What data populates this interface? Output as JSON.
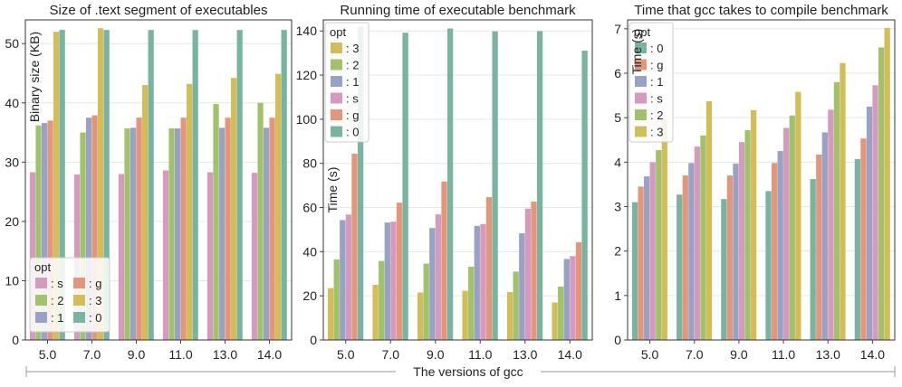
{
  "figure": {
    "shared_xlabel": "The versions of gcc"
  },
  "chart_data": [
    {
      "type": "bar",
      "title": "Size of .text segment of executables",
      "ylabel": "Binary size (KB)",
      "xlabel": "",
      "ylim": [
        0,
        54
      ],
      "yticks": [
        0,
        10,
        20,
        30,
        40,
        50
      ],
      "categories": [
        "5.0",
        "7.0",
        "9.0",
        "11.0",
        "13.0",
        "14.0"
      ],
      "legend": {
        "title": "opt",
        "position": "lower-left",
        "columns": 2,
        "entries": [
          ": s",
          ": g",
          ": 2",
          ": 3",
          ": 1",
          ": 0"
        ]
      },
      "series": [
        {
          "name": "s",
          "color": "#d69abf",
          "values": [
            28.3,
            27.9,
            28.0,
            28.6,
            28.3,
            28.2
          ]
        },
        {
          "name": "2",
          "color": "#9fc26b",
          "values": [
            36.2,
            35.0,
            35.7,
            35.7,
            39.8,
            40.0
          ]
        },
        {
          "name": "1",
          "color": "#97a2c5",
          "values": [
            36.6,
            37.5,
            35.8,
            35.7,
            35.8,
            35.8
          ]
        },
        {
          "name": "g",
          "color": "#e3967a",
          "values": [
            37.0,
            37.9,
            37.5,
            37.5,
            37.5,
            37.5
          ]
        },
        {
          "name": "3",
          "color": "#d4bc56",
          "values": [
            52.0,
            52.6,
            43.0,
            43.2,
            44.2,
            44.9
          ]
        },
        {
          "name": "0",
          "color": "#78b4a1",
          "values": [
            52.3,
            52.3,
            52.3,
            52.3,
            52.3,
            52.3
          ]
        }
      ]
    },
    {
      "type": "bar",
      "title": "Running time of executable benchmark",
      "ylabel": "Time (s)",
      "xlabel": "",
      "ylim": [
        0,
        145
      ],
      "yticks": [
        0,
        20,
        40,
        60,
        80,
        100,
        120,
        140
      ],
      "categories": [
        "5.0",
        "7.0",
        "9.0",
        "11.0",
        "13.0",
        "14.0"
      ],
      "legend": {
        "title": "opt",
        "position": "upper-left",
        "columns": 1,
        "entries": [
          ": 3",
          ": 2",
          ": 1",
          ": s",
          ": g",
          ": 0"
        ]
      },
      "series": [
        {
          "name": "3",
          "color": "#d4bc56",
          "values": [
            23.5,
            25.0,
            21.5,
            22.3,
            21.7,
            17.0
          ]
        },
        {
          "name": "2",
          "color": "#9fc26b",
          "values": [
            36.5,
            35.8,
            34.6,
            33.2,
            31.0,
            24.2
          ]
        },
        {
          "name": "1",
          "color": "#97a2c5",
          "values": [
            54.3,
            53.2,
            50.7,
            51.7,
            48.3,
            36.7
          ]
        },
        {
          "name": "s",
          "color": "#d69abf",
          "values": [
            56.8,
            53.6,
            56.9,
            52.5,
            59.5,
            38.0
          ]
        },
        {
          "name": "g",
          "color": "#e3967a",
          "values": [
            84.4,
            62.2,
            71.8,
            64.7,
            62.7,
            44.3
          ]
        },
        {
          "name": "0",
          "color": "#78b4a1",
          "values": [
            142.0,
            139.2,
            141.1,
            139.8,
            139.9,
            131.1
          ]
        }
      ]
    },
    {
      "type": "bar",
      "title": "Time that gcc takes to compile benchmark",
      "ylabel": "Time (s)",
      "xlabel": "",
      "ylim": [
        0,
        7.2
      ],
      "yticks": [
        0,
        1,
        2,
        3,
        4,
        5,
        6,
        7
      ],
      "categories": [
        "5.0",
        "7.0",
        "9.0",
        "11.0",
        "13.0",
        "14.0"
      ],
      "legend": {
        "title": "opt",
        "position": "upper-left",
        "columns": 1,
        "entries": [
          ": 0",
          ": g",
          ": 1",
          ": s",
          ": 2",
          ": 3"
        ]
      },
      "series": [
        {
          "name": "0",
          "color": "#78b4a1",
          "values": [
            3.1,
            3.27,
            3.17,
            3.35,
            3.62,
            4.07
          ]
        },
        {
          "name": "g",
          "color": "#e3967a",
          "values": [
            3.45,
            3.7,
            3.7,
            3.98,
            4.17,
            4.53
          ]
        },
        {
          "name": "1",
          "color": "#97a2c5",
          "values": [
            3.68,
            3.98,
            3.97,
            4.25,
            4.67,
            5.25
          ]
        },
        {
          "name": "s",
          "color": "#d69abf",
          "values": [
            4.0,
            4.35,
            4.45,
            4.77,
            5.18,
            5.73
          ]
        },
        {
          "name": "2",
          "color": "#9fc26b",
          "values": [
            4.27,
            4.6,
            4.72,
            5.05,
            5.8,
            6.58
          ]
        },
        {
          "name": "3",
          "color": "#d4bc56",
          "values": [
            4.98,
            5.37,
            5.17,
            5.58,
            6.23,
            7.02
          ]
        }
      ]
    }
  ]
}
